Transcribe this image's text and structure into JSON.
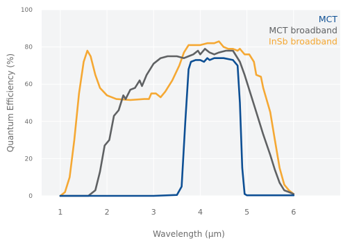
{
  "chart_data": {
    "type": "line",
    "title": "",
    "xlabel": "Wavelength (µm)",
    "ylabel": "Quantum Efficiency (%)",
    "xlim": [
      0.6,
      7.0
    ],
    "ylim": [
      0,
      100
    ],
    "xticks": [
      1,
      2,
      3,
      4,
      5,
      6
    ],
    "yticks": [
      0,
      20,
      40,
      60,
      80,
      100
    ],
    "grid": true,
    "legend_position": "top-right",
    "series": [
      {
        "name": "MCT",
        "color": "#0d4f94",
        "points": [
          [
            1.0,
            0
          ],
          [
            2.0,
            0
          ],
          [
            3.0,
            0
          ],
          [
            3.5,
            0.5
          ],
          [
            3.6,
            5
          ],
          [
            3.68,
            40
          ],
          [
            3.75,
            68
          ],
          [
            3.8,
            72
          ],
          [
            3.9,
            73
          ],
          [
            4.0,
            73
          ],
          [
            4.08,
            72
          ],
          [
            4.15,
            74
          ],
          [
            4.2,
            73
          ],
          [
            4.3,
            74
          ],
          [
            4.5,
            74
          ],
          [
            4.7,
            73
          ],
          [
            4.8,
            70
          ],
          [
            4.85,
            50
          ],
          [
            4.9,
            15
          ],
          [
            4.95,
            1
          ],
          [
            5.0,
            0.3
          ],
          [
            6.0,
            0.3
          ]
        ]
      },
      {
        "name": "MCT broadband",
        "color": "#5f6163",
        "points": [
          [
            1.0,
            0
          ],
          [
            1.6,
            0
          ],
          [
            1.75,
            3
          ],
          [
            1.85,
            13
          ],
          [
            1.95,
            27
          ],
          [
            2.05,
            30
          ],
          [
            2.15,
            43
          ],
          [
            2.25,
            46
          ],
          [
            2.35,
            54
          ],
          [
            2.4,
            52
          ],
          [
            2.5,
            57
          ],
          [
            2.6,
            58
          ],
          [
            2.7,
            62
          ],
          [
            2.75,
            59
          ],
          [
            2.85,
            65
          ],
          [
            3.0,
            71
          ],
          [
            3.15,
            74
          ],
          [
            3.3,
            75
          ],
          [
            3.5,
            75
          ],
          [
            3.65,
            74
          ],
          [
            3.75,
            75
          ],
          [
            3.85,
            76
          ],
          [
            3.95,
            78
          ],
          [
            4.0,
            76
          ],
          [
            4.1,
            79
          ],
          [
            4.2,
            77
          ],
          [
            4.3,
            76
          ],
          [
            4.4,
            77
          ],
          [
            4.55,
            78
          ],
          [
            4.7,
            78
          ],
          [
            4.85,
            72
          ],
          [
            4.95,
            65
          ],
          [
            5.05,
            57
          ],
          [
            5.2,
            45
          ],
          [
            5.35,
            33
          ],
          [
            5.5,
            22
          ],
          [
            5.6,
            14
          ],
          [
            5.7,
            7
          ],
          [
            5.8,
            3
          ],
          [
            5.9,
            2
          ],
          [
            6.0,
            1
          ]
        ]
      },
      {
        "name": "InSb broadband",
        "color": "#f5a833",
        "points": [
          [
            1.0,
            0
          ],
          [
            1.1,
            2
          ],
          [
            1.2,
            10
          ],
          [
            1.3,
            30
          ],
          [
            1.4,
            55
          ],
          [
            1.5,
            72
          ],
          [
            1.58,
            78
          ],
          [
            1.65,
            75
          ],
          [
            1.75,
            65
          ],
          [
            1.85,
            58
          ],
          [
            2.0,
            54
          ],
          [
            2.2,
            52
          ],
          [
            2.5,
            51.5
          ],
          [
            2.8,
            52
          ],
          [
            2.9,
            52
          ],
          [
            2.95,
            55
          ],
          [
            3.05,
            55
          ],
          [
            3.15,
            53
          ],
          [
            3.25,
            56
          ],
          [
            3.4,
            62
          ],
          [
            3.55,
            70
          ],
          [
            3.65,
            77
          ],
          [
            3.75,
            81
          ],
          [
            3.85,
            81
          ],
          [
            4.0,
            81
          ],
          [
            4.15,
            82
          ],
          [
            4.3,
            82
          ],
          [
            4.4,
            83
          ],
          [
            4.5,
            80
          ],
          [
            4.6,
            79
          ],
          [
            4.7,
            79
          ],
          [
            4.8,
            78
          ],
          [
            4.85,
            79
          ],
          [
            4.95,
            76
          ],
          [
            5.05,
            76
          ],
          [
            5.15,
            72
          ],
          [
            5.2,
            65
          ],
          [
            5.3,
            64
          ],
          [
            5.35,
            58
          ],
          [
            5.5,
            45
          ],
          [
            5.6,
            30
          ],
          [
            5.7,
            15
          ],
          [
            5.8,
            6
          ],
          [
            5.9,
            3
          ],
          [
            6.0,
            1
          ]
        ]
      }
    ]
  }
}
